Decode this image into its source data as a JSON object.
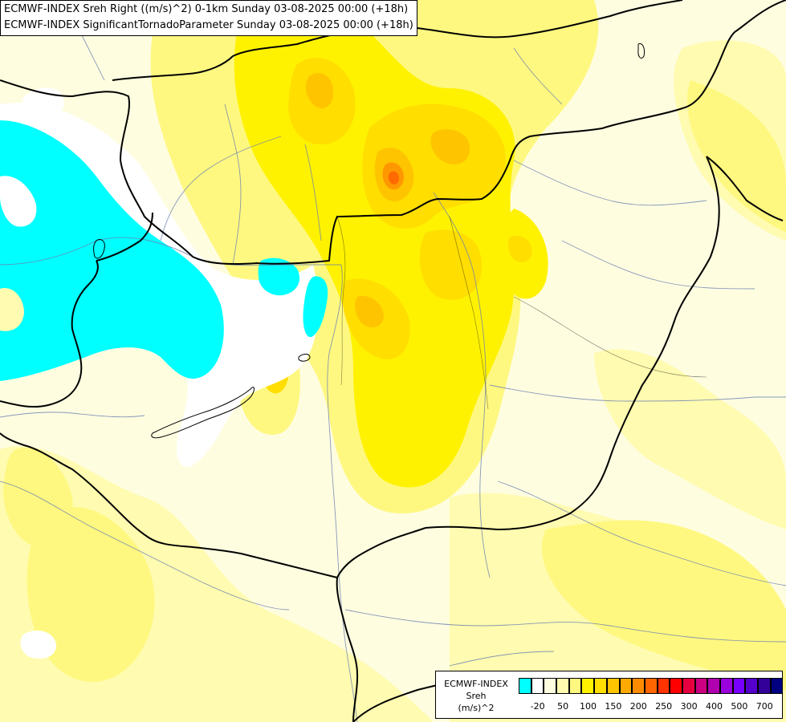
{
  "titles": {
    "line1": "ECMWF-INDEX Sreh Right ((m/s)^2) 0-1km Sunday 03-08-2025 00:00 (+18h)",
    "line2": "ECMWF-INDEX SignificantTornadoParameter Sunday 03-08-2025 00:00 (+18h)"
  },
  "legend": {
    "line1": "ECMWF-INDEX",
    "line2": "Sreh",
    "line3": "(m/s)^2",
    "colors": [
      "#00ffff",
      "#ffffff",
      "#fffde0",
      "#fffbb0",
      "#fff880",
      "#fff200",
      "#ffde00",
      "#ffc400",
      "#ffaa00",
      "#ff8c00",
      "#ff6600",
      "#ff3300",
      "#ff0000",
      "#e60040",
      "#cc0080",
      "#b000b0",
      "#9900dd",
      "#7700ff",
      "#5500cc",
      "#330099",
      "#000080"
    ],
    "ticks": [
      "-20",
      "50",
      "100",
      "150",
      "200",
      "250",
      "300",
      "400",
      "500",
      "700"
    ]
  },
  "map_colors": {
    "background": "#fffde0",
    "light_yellow": "#fffbb0",
    "yellow": "#fff880",
    "bright_yellow": "#fff200",
    "gold": "#ffde00",
    "orange": "#ffc400",
    "dark_orange": "#ff8c00",
    "cyan": "#00ffff",
    "white": "#ffffff",
    "border": "#000000",
    "river": "#6a7fb0"
  }
}
